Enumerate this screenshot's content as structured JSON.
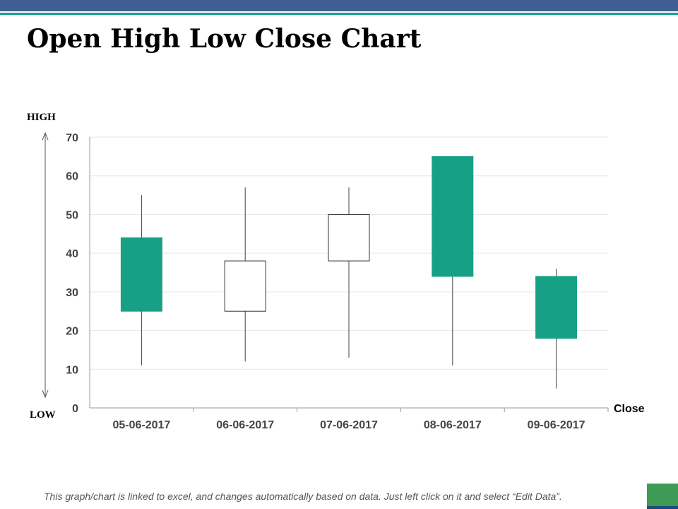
{
  "slide": {
    "title": "Open High Low Close Chart",
    "high_label": "HIGH",
    "low_label": "LOW",
    "footer": "This graph/chart is linked to excel, and changes automatically based on data. Just left click on it and select “Edit Data”.",
    "colors": {
      "top_bar": "#3f5f94",
      "accent": "#1aa08a",
      "corner": "#3d9b55"
    }
  },
  "chart_data": {
    "type": "candlestick",
    "categories": [
      "05-06-2017",
      "06-06-2017",
      "07-06-2017",
      "08-06-2017",
      "09-06-2017"
    ],
    "open": [
      44,
      25,
      38,
      65,
      34
    ],
    "high": [
      55,
      57,
      57,
      65,
      36
    ],
    "low": [
      11,
      12,
      13,
      11,
      5
    ],
    "close": [
      25,
      38,
      50,
      34,
      18
    ],
    "legend": "Close",
    "ylim": [
      0,
      70
    ],
    "yticks": [
      0,
      10,
      20,
      30,
      40,
      50,
      60,
      70
    ],
    "grid": true,
    "colors": {
      "down": "#18a086",
      "up": "#ffffff",
      "outline": "#333333"
    }
  }
}
